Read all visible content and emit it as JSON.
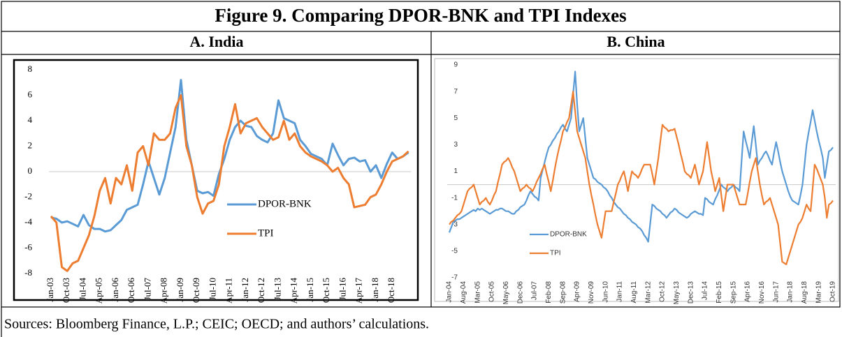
{
  "figure_title": "Figure 9. Comparing DPOR-BNK and TPI Indexes",
  "source": "Sources: Bloomberg Finance, L.P.; CEIC; OECD; and authors’ calculations.",
  "chart_data": [
    {
      "type": "line",
      "title": "A. India",
      "legend": "center",
      "categories": [
        "Jan-03",
        null,
        null,
        "Oct-03",
        null,
        null,
        "Jul-04",
        null,
        null,
        "Apr-05",
        null,
        null,
        "Jan-06",
        null,
        null,
        "Oct-06",
        null,
        null,
        "Jul-07",
        null,
        null,
        "Apr-08",
        null,
        null,
        "Jan-09",
        null,
        null,
        "Oct-09",
        null,
        null,
        "Jul-10",
        null,
        null,
        "Apr-11",
        null,
        null,
        "Jan-12",
        null,
        null,
        "Oct-12",
        null,
        null,
        "Jul-13",
        null,
        null,
        "Apr-14",
        null,
        null,
        "Jan-15",
        null,
        null,
        "Oct-15",
        null,
        null,
        "Jul-16",
        null,
        null,
        "Apr-17",
        null,
        null,
        "Jan-18",
        null,
        null,
        "Oct-18",
        null,
        null,
        null
      ],
      "series": [
        {
          "name": "DPOR-BNK",
          "color": "#5b9bd5",
          "values": [
            -3.6,
            -3.7,
            -4.0,
            -3.9,
            -4.1,
            -4.3,
            -3.4,
            -4.2,
            -4.5,
            -4.5,
            -4.7,
            -4.6,
            -4.2,
            -3.8,
            -3.0,
            -2.8,
            -2.6,
            -1.0,
            0.8,
            -0.5,
            -1.8,
            -0.5,
            1.5,
            3.5,
            7.2,
            2.5,
            0.5,
            -1.5,
            -1.7,
            -1.6,
            -1.9,
            -0.2,
            1.0,
            2.5,
            3.5,
            4.0,
            3.6,
            3.5,
            2.8,
            2.5,
            2.3,
            3.0,
            5.6,
            4.2,
            4.0,
            3.8,
            2.5,
            2.0,
            1.4,
            1.2,
            1.0,
            0.5,
            2.2,
            1.3,
            0.5,
            1.0,
            1.1,
            0.8,
            0.9,
            0.0,
            0.5,
            -0.5,
            0.6,
            1.5,
            1.0,
            1.2,
            1.5
          ]
        },
        {
          "name": "TPI",
          "color": "#ed7d31",
          "values": [
            -3.5,
            -4,
            -7.5,
            -7.8,
            -7.2,
            -7,
            -6,
            -5,
            -3.5,
            -1.5,
            -0.5,
            -2.5,
            -0.5,
            -1,
            0.5,
            -1.5,
            1.5,
            2,
            0.5,
            3,
            2.5,
            2.5,
            3,
            5,
            6,
            2,
            0.5,
            -2,
            -3.3,
            -2.5,
            -2.3,
            -1,
            2,
            3.5,
            5.3,
            3,
            3.8,
            4,
            4.2,
            3.5,
            3,
            2.5,
            2.7,
            4,
            2.5,
            3,
            2,
            1.5,
            1.2,
            1,
            0.8,
            0.5,
            0,
            0.3,
            -0.5,
            -1,
            -2.8,
            -2.7,
            -2.6,
            -2,
            -1.8,
            -1,
            0,
            0.8,
            1,
            1.2,
            1.6
          ]
        }
      ],
      "ylim": [
        -8,
        8
      ],
      "yticks": [
        8,
        6,
        4,
        2,
        0,
        -2,
        -4,
        -6,
        -8
      ]
    },
    {
      "type": "line",
      "title": "B. China",
      "legend": "center",
      "categories": [
        "Jan-04",
        null,
        null,
        null,
        null,
        null,
        null,
        "Aug-04",
        null,
        null,
        null,
        null,
        null,
        null,
        "Mar-05",
        null,
        null,
        null,
        null,
        null,
        null,
        "Oct-05",
        null,
        null,
        null,
        null,
        null,
        null,
        "May-06",
        null,
        null,
        null,
        null,
        null,
        null,
        "Dec-06",
        null,
        null,
        null,
        null,
        null,
        null,
        "Jul-07",
        null,
        null,
        null,
        null,
        null,
        null,
        "Feb-08",
        null,
        null,
        null,
        null,
        null,
        null,
        "Sep-08",
        null,
        null,
        null,
        null,
        null,
        null,
        "Apr-09",
        null,
        null,
        null,
        null,
        null,
        null,
        "Nov-09",
        null,
        null,
        null,
        null,
        null,
        null,
        "Jun-10",
        null,
        null,
        null,
        null,
        null,
        null,
        "Jan-11",
        null,
        null,
        null,
        null,
        null,
        null,
        "Aug-11",
        null,
        null,
        null,
        null,
        null,
        null,
        "Mar-12",
        null,
        null,
        null,
        null,
        null,
        null,
        "Oct-12",
        null,
        null,
        null,
        null,
        null,
        null,
        "May-13",
        null,
        null,
        null,
        null,
        null,
        null,
        "Dec-13",
        null,
        null,
        null,
        null,
        null,
        null,
        "Jul-14",
        null,
        null,
        null,
        null,
        null,
        null,
        "Feb-15",
        null,
        null,
        null,
        null,
        null,
        null,
        "Sep-15",
        null,
        null,
        null,
        null,
        null,
        null,
        "Apr-16",
        null,
        null,
        null,
        null,
        null,
        null,
        "Nov-16",
        null,
        null,
        null,
        null,
        null,
        null,
        "Jun-17",
        null,
        null,
        null,
        null,
        null,
        null,
        "Jan-18",
        null,
        null,
        null,
        null,
        null,
        null,
        "Aug-18",
        null,
        null,
        null,
        null,
        null,
        null,
        "Mar-19",
        null,
        null,
        null,
        null,
        null,
        null,
        "Oct-19"
      ],
      "series": [
        {
          "name": "DPOR-BNK",
          "color": "#5b9bd5",
          "values": [
            -3.6,
            -3.2,
            -2.8,
            -2.7,
            -2.6,
            -2.6,
            -2.5,
            -2.4,
            -2.3,
            -2.2,
            -2.1,
            -2.0,
            -1.9,
            -2.0,
            -1.8,
            -1.9,
            -1.8,
            -1.9,
            -2.0,
            -2.1,
            -2.2,
            -2.1,
            -2.0,
            -1.9,
            -1.9,
            -1.8,
            -1.8,
            -1.9,
            -2.0,
            -2.0,
            -2.1,
            -2.2,
            -2.2,
            -2.0,
            -1.9,
            -1.7,
            -1.6,
            -1.5,
            -1.2,
            -0.8,
            -0.5,
            -0.7,
            -0.9,
            -1.0,
            -1.2,
            0.5,
            1.1,
            1.7,
            2.3,
            2.8,
            3.0,
            3.3,
            3.5,
            3.8,
            4.0,
            4.3,
            4.5,
            4.2,
            4.0,
            4.5,
            5.0,
            6.8,
            8.5,
            6.0,
            4.0,
            4.5,
            5.0,
            3.5,
            2.0,
            1.5,
            1.0,
            0.5,
            0.4,
            0.2,
            0.1,
            0.0,
            -0.2,
            -0.3,
            -0.5,
            -0.8,
            -1.0,
            -1.3,
            -1.5,
            -1.7,
            -1.8,
            -2.0,
            -2.2,
            -2.3,
            -2.5,
            -2.6,
            -2.8,
            -2.9,
            -3.0,
            -3.2,
            -3.3,
            -3.5,
            -3.8,
            -4.0,
            -4.3,
            -2.9,
            -1.5,
            -1.6,
            -1.8,
            -1.9,
            -2.0,
            -2.2,
            -2.3,
            -2.5,
            -2.3,
            -2.1,
            -2.0,
            -1.8,
            -1.9,
            -2.1,
            -2.2,
            -2.3,
            -2.4,
            -2.5,
            -2.4,
            -2.2,
            -2.1,
            -2.0,
            -2.1,
            -2.2,
            -2.2,
            -2.3,
            -1.0,
            -1.1,
            -1.3,
            -1.4,
            -1.5,
            -1.1,
            -0.8,
            -0.4,
            0.0,
            -0.2,
            -0.3,
            -0.5,
            -0.3,
            -0.2,
            0.0,
            -0.2,
            -0.3,
            -0.5,
            1.8,
            4.0,
            3.3,
            2.7,
            2.0,
            3.2,
            4.4,
            3.0,
            1.5,
            1.8,
            2.0,
            2.3,
            2.5,
            2.2,
            1.8,
            1.5,
            2.4,
            3.2,
            2.5,
            1.7,
            1.0,
            0.5,
            0.0,
            -0.5,
            -0.9,
            -1.2,
            -1.3,
            -1.4,
            -1.5,
            -0.8,
            0.0,
            1.5,
            3.0,
            3.9,
            4.7,
            5.6,
            4.8,
            4.0,
            3.3,
            2.7,
            2.0,
            0.5,
            1.5,
            2.5,
            2.6,
            2.8
          ]
        },
        {
          "name": "TPI",
          "color": "#ed7d31",
          "values": [
            -3.0,
            -2.8,
            -2.7,
            -2.5,
            -2.3,
            -2.2,
            -2.0,
            -1.5,
            -1.0,
            -0.5,
            -0.3,
            -0.2,
            0.0,
            -0.5,
            -1.0,
            -1.5,
            -1.3,
            -1.2,
            -1.0,
            -1.3,
            -1.5,
            -1.2,
            -0.8,
            -0.5,
            0.2,
            0.8,
            1.5,
            1.7,
            1.8,
            2.0,
            1.7,
            1.3,
            1.0,
            0.5,
            0.0,
            -0.5,
            -0.3,
            -0.2,
            0.0,
            -0.2,
            -0.3,
            -0.5,
            -0.2,
            0.2,
            0.5,
            0.8,
            1.2,
            1.5,
            0.8,
            0.2,
            -0.5,
            0.3,
            1.2,
            2.0,
            2.7,
            3.3,
            4.0,
            4.3,
            4.7,
            5.0,
            6.0,
            7.0,
            5.5,
            4.0,
            3.5,
            3.0,
            2.5,
            2.0,
            1.0,
            0.0,
            -0.8,
            -1.5,
            -2.3,
            -3.0,
            -3.5,
            -4.0,
            -3.0,
            -2.0,
            -2.0,
            -2.0,
            -2.0,
            -1.3,
            -0.7,
            0.0,
            0.3,
            0.7,
            1.0,
            0.3,
            -0.5,
            0.3,
            1.0,
            0.8,
            0.7,
            0.5,
            0.8,
            1.2,
            1.5,
            1.5,
            1.5,
            1.5,
            0.8,
            0.0,
            1.0,
            2.0,
            3.3,
            4.5,
            4.3,
            4.2,
            4.0,
            4.1,
            4.1,
            4.2,
            3.6,
            3.0,
            2.3,
            1.7,
            1.0,
            0.8,
            0.7,
            0.5,
            1.0,
            1.5,
            0.8,
            0.0,
            0.5,
            1.0,
            2.1,
            3.2,
            2.1,
            1.0,
            0.3,
            -0.5,
            0.0,
            0.5,
            -0.8,
            -2.0,
            -1.0,
            0.0,
            0.0,
            0.0,
            0.0,
            -0.5,
            -1.0,
            -1.5,
            -1.5,
            -1.5,
            -1.5,
            -0.7,
            0.2,
            1.0,
            1.5,
            2.0,
            1.0,
            0.0,
            -0.8,
            -1.5,
            -1.3,
            -1.2,
            -1.0,
            -1.5,
            -2.0,
            -2.5,
            -3.0,
            -4.4,
            -5.8,
            -5.9,
            -6.0,
            -5.5,
            -5.0,
            -4.5,
            -4.0,
            -3.5,
            -3.0,
            -2.8,
            -2.5,
            -2.0,
            -1.5,
            -1.8,
            -2.0,
            -0.3,
            1.5,
            1.2,
            0.8,
            0.4,
            0.0,
            -1.0,
            -2.5,
            -1.5,
            -1.4,
            -1.2
          ]
        }
      ],
      "ylim": [
        -7,
        9
      ],
      "yticks": [
        9,
        7,
        5,
        3,
        1,
        -1,
        -3,
        -5,
        -7
      ]
    }
  ]
}
